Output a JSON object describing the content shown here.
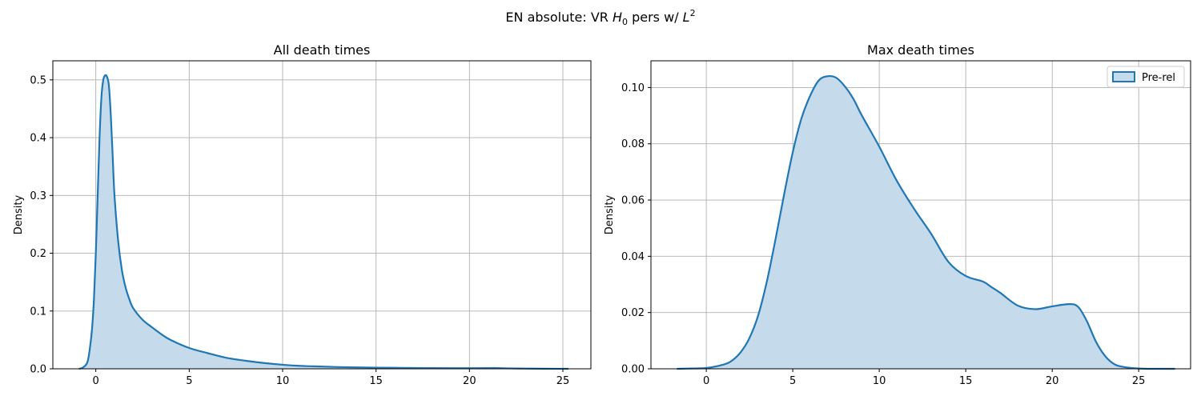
{
  "figure": {
    "suptitle_prefix": "EN absolute: VR ",
    "suptitle_var": "H",
    "suptitle_var_sub": "0",
    "suptitle_mid": " pers w/ ",
    "suptitle_var2": "L",
    "suptitle_var2_sup": "2"
  },
  "colors": {
    "line": "#1f77b4",
    "fill": "#c5daea",
    "grid": "#b0b0b0",
    "axis": "#000000"
  },
  "chart_data": [
    {
      "type": "area",
      "title": "All death times",
      "xlabel": "",
      "ylabel": "Density",
      "xlim": [
        -2.3,
        26.5
      ],
      "ylim": [
        0,
        0.533
      ],
      "xticks": [
        0,
        5,
        10,
        15,
        20,
        25
      ],
      "xtick_labels": [
        "0",
        "5",
        "10",
        "15",
        "20",
        "25"
      ],
      "yticks": [
        0.0,
        0.1,
        0.2,
        0.3,
        0.4,
        0.5
      ],
      "ytick_labels": [
        "0.0",
        "0.1",
        "0.2",
        "0.3",
        "0.4",
        "0.5"
      ],
      "grid": true,
      "series": [
        {
          "x": [
            -0.9,
            -0.7,
            -0.5,
            -0.4,
            -0.3,
            -0.2,
            -0.1,
            0.0,
            0.1,
            0.2,
            0.3,
            0.4,
            0.5,
            0.6,
            0.7,
            0.8,
            0.9,
            1.0,
            1.2,
            1.4,
            1.6,
            1.8,
            2.0,
            2.5,
            3.0,
            3.5,
            4.0,
            5.0,
            6.0,
            7.0,
            8.0,
            9.0,
            10.0,
            11.0,
            12.0,
            13.0,
            14.0,
            15.0,
            16.0,
            17.0,
            18.0,
            19.0,
            20.0,
            21.0,
            21.5,
            22.0,
            23.0,
            24.0,
            25.3
          ],
          "y": [
            0.0,
            0.002,
            0.008,
            0.018,
            0.04,
            0.07,
            0.12,
            0.2,
            0.3,
            0.4,
            0.47,
            0.5,
            0.508,
            0.505,
            0.49,
            0.44,
            0.37,
            0.3,
            0.22,
            0.17,
            0.14,
            0.12,
            0.105,
            0.085,
            0.072,
            0.06,
            0.05,
            0.036,
            0.027,
            0.019,
            0.014,
            0.01,
            0.007,
            0.005,
            0.004,
            0.003,
            0.0025,
            0.002,
            0.0017,
            0.0014,
            0.0012,
            0.001,
            0.001,
            0.0013,
            0.0013,
            0.0008,
            0.0004,
            0.0002,
            0.0
          ]
        }
      ]
    },
    {
      "type": "area",
      "title": "Max death times",
      "xlabel": "",
      "ylabel": "Density",
      "xlim": [
        -3.2,
        28.0
      ],
      "ylim": [
        0,
        0.1095
      ],
      "xticks": [
        0,
        5,
        10,
        15,
        20,
        25
      ],
      "xtick_labels": [
        "0",
        "5",
        "10",
        "15",
        "20",
        "25"
      ],
      "yticks": [
        0.0,
        0.02,
        0.04,
        0.06,
        0.08,
        0.1
      ],
      "ytick_labels": [
        "0.00",
        "0.02",
        "0.04",
        "0.06",
        "0.08",
        "0.10"
      ],
      "grid": true,
      "legend": {
        "placement": "top-right",
        "entries": [
          "Pre-rel"
        ]
      },
      "series": [
        {
          "name": "Pre-rel",
          "x": [
            -1.7,
            -1.0,
            0.0,
            1.0,
            1.5,
            2.0,
            2.5,
            3.0,
            3.5,
            4.0,
            4.5,
            5.0,
            5.5,
            6.0,
            6.5,
            7.0,
            7.5,
            8.0,
            8.5,
            9.0,
            10.0,
            11.0,
            12.0,
            13.0,
            14.0,
            15.0,
            16.0,
            16.5,
            17.0,
            18.0,
            19.0,
            20.0,
            21.0,
            21.5,
            22.0,
            22.5,
            23.0,
            23.5,
            24.0,
            25.0,
            26.0,
            27.1
          ],
          "y": [
            0.0,
            0.0001,
            0.0003,
            0.0015,
            0.003,
            0.006,
            0.011,
            0.019,
            0.031,
            0.046,
            0.062,
            0.077,
            0.089,
            0.097,
            0.1025,
            0.104,
            0.1035,
            0.1005,
            0.096,
            0.09,
            0.079,
            0.067,
            0.057,
            0.048,
            0.038,
            0.033,
            0.031,
            0.029,
            0.027,
            0.0225,
            0.0212,
            0.0222,
            0.023,
            0.022,
            0.017,
            0.01,
            0.005,
            0.002,
            0.0008,
            0.0001,
            0.0,
            0.0
          ]
        }
      ]
    }
  ]
}
